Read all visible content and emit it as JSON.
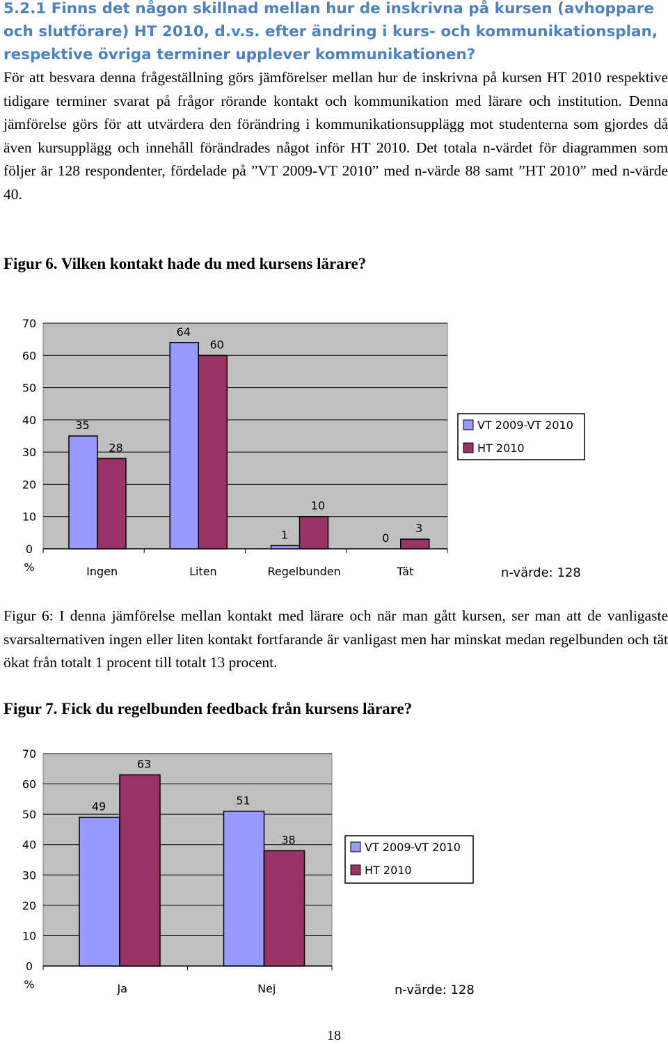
{
  "heading": "5.2.1 Finns det någon skillnad mellan hur de inskrivna på kursen (avhoppare och slutförare) HT 2010, d.v.s. efter ändring i kurs- och kommunikationsplan, respektive övriga terminer upplever kommunikationen?",
  "intro": "För att besvara denna frågeställning görs jämförelser mellan hur de inskrivna på kursen HT 2010 respektive tidigare terminer svarat på frågor rörande kontakt och kommunikation med lärare och institution. Denna jämförelse görs för att utvärdera den förändring i kommunikationsupplägg mot studenterna som gjordes då även kursupplägg och innehåll förändrades något inför HT 2010. Det totala n-värdet för diagrammen som följer är 128 respondenter, fördelade på ”VT 2009-VT 2010” med n-värde 88 samt ”HT 2010” med n-värde 40.",
  "figure6": {
    "title": "Figur 6. Vilken kontakt hade du med kursens lärare?",
    "caption": "Figur 6: I denna jämförelse mellan kontakt med lärare och när man gått kursen, ser man att de vanligaste svarsalternativen ingen eller liten kontakt fortfarande är vanligast men har minskat medan regelbunden och tät ökat från totalt 1 procent till totalt 13 procent."
  },
  "figure7": {
    "title": "Figur 7. Fick du regelbunden feedback från kursens lärare?"
  },
  "page_number": "18",
  "colors": {
    "heading": "#4f81bd",
    "series_vt": "#9999ff",
    "series_ht": "#993366",
    "plot_bg": "#c0c0c0"
  },
  "chart_data": [
    {
      "type": "bar",
      "categories": [
        "Ingen",
        "Liten",
        "Regelbunden",
        "Tät"
      ],
      "series": [
        {
          "name": "VT 2009-VT 2010",
          "values": [
            35,
            64,
            1,
            0
          ]
        },
        {
          "name": "HT 2010",
          "values": [
            28,
            60,
            10,
            3
          ]
        }
      ],
      "yticks": [
        "0",
        "10",
        "20",
        "30",
        "40",
        "50",
        "60",
        "70"
      ],
      "ylabel": "%",
      "ylim": [
        0,
        70
      ],
      "grid": true,
      "legend": "right",
      "note": "n-värde: 128"
    },
    {
      "type": "bar",
      "categories": [
        "Ja",
        "Nej"
      ],
      "series": [
        {
          "name": "VT 2009-VT 2010",
          "values": [
            49,
            51
          ]
        },
        {
          "name": "HT 2010",
          "values": [
            63,
            38
          ]
        }
      ],
      "yticks": [
        "0",
        "10",
        "20",
        "30",
        "40",
        "50",
        "60",
        "70"
      ],
      "ylabel": "%",
      "ylim": [
        0,
        70
      ],
      "grid": true,
      "legend": "right",
      "note": "n-värde: 128"
    }
  ]
}
